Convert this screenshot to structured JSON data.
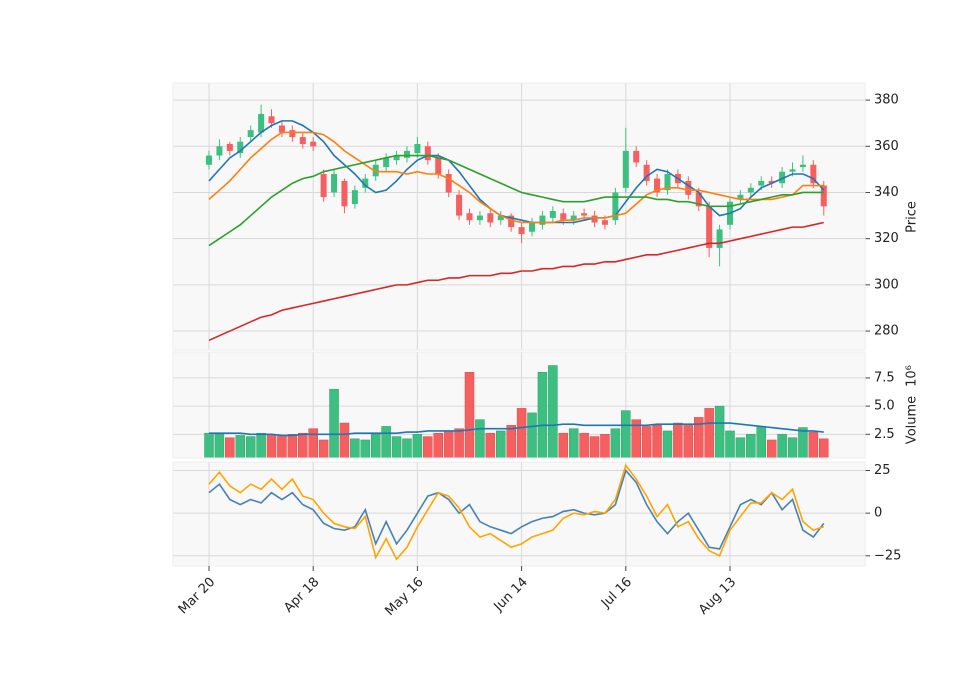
{
  "chart_data": [
    {
      "type": "candlestick",
      "ylabel": "Price",
      "categories": [
        "Mar 20",
        null,
        null,
        null,
        null,
        null,
        null,
        null,
        null,
        null,
        "Apr 18",
        null,
        null,
        null,
        null,
        null,
        null,
        null,
        null,
        null,
        "May 16",
        null,
        null,
        null,
        null,
        null,
        null,
        null,
        null,
        null,
        "Jun 14",
        null,
        null,
        null,
        null,
        null,
        null,
        null,
        null,
        null,
        "Jul 16",
        null,
        null,
        null,
        null,
        null,
        null,
        null,
        null,
        null,
        "Aug 13",
        null,
        null,
        null,
        null,
        null,
        null,
        null,
        null,
        null
      ],
      "open": [
        352,
        356,
        361,
        357,
        364,
        366,
        373,
        369,
        367,
        364,
        362,
        348,
        340,
        345,
        335,
        342,
        347,
        351,
        354,
        355,
        357,
        360,
        355,
        348,
        339,
        331,
        328,
        331,
        328,
        330,
        325,
        323,
        326,
        329,
        331,
        328,
        331,
        330,
        328,
        328,
        342,
        358,
        352,
        346,
        341,
        348,
        345,
        340,
        334,
        316,
        326,
        337,
        340,
        343,
        345,
        344,
        349,
        351,
        352,
        343
      ],
      "high": [
        358,
        363,
        362,
        364,
        369,
        378,
        376,
        371,
        369,
        366,
        364,
        350,
        350,
        346,
        343,
        348,
        354,
        357,
        358,
        360,
        364,
        362,
        357,
        350,
        341,
        333,
        332,
        333,
        332,
        331,
        327,
        329,
        332,
        334,
        333,
        332,
        333,
        332,
        330,
        342,
        368,
        360,
        354,
        348,
        350,
        350,
        347,
        342,
        336,
        326,
        338,
        341,
        344,
        347,
        347,
        351,
        353,
        356,
        354,
        345
      ],
      "low": [
        350,
        354,
        356,
        355,
        362,
        364,
        368,
        364,
        362,
        359,
        358,
        336,
        338,
        331,
        333,
        340,
        345,
        349,
        352,
        353,
        355,
        352,
        346,
        338,
        328,
        326,
        326,
        325,
        326,
        323,
        318,
        321,
        324,
        327,
        326,
        326,
        328,
        325,
        324,
        326,
        340,
        351,
        343,
        338,
        339,
        342,
        337,
        332,
        312,
        308,
        324,
        335,
        338,
        341,
        342,
        342,
        347,
        349,
        342,
        330
      ],
      "close": [
        356,
        360,
        358,
        362,
        367,
        374,
        370,
        366,
        364,
        361,
        360,
        338,
        348,
        334,
        341,
        346,
        352,
        355,
        356,
        358,
        361,
        354,
        348,
        340,
        330,
        328,
        330,
        327,
        330,
        325,
        322,
        327,
        330,
        332,
        328,
        330,
        330,
        327,
        326,
        340,
        358,
        353,
        345,
        340,
        348,
        344,
        339,
        334,
        316,
        324,
        336,
        339,
        342,
        345,
        344,
        349,
        350,
        352,
        344,
        334
      ],
      "up_color": "#3ebf82",
      "down_color": "#f55f5f",
      "series": [
        {
          "color": "#1f77b4",
          "values": [
            345,
            350,
            355,
            358,
            362,
            366,
            369,
            371,
            371,
            369,
            366,
            362,
            356,
            352,
            348,
            343,
            340,
            341,
            345,
            350,
            354,
            356,
            356,
            354,
            349,
            343,
            337,
            333,
            330,
            329,
            328,
            327,
            327,
            327,
            327,
            327,
            328,
            329,
            329,
            330,
            336,
            342,
            347,
            350,
            349,
            346,
            343,
            340,
            334,
            330,
            331,
            333,
            338,
            342,
            344,
            346,
            348,
            348,
            346,
            341
          ]
        },
        {
          "color": "#ff7f0e",
          "values": [
            337,
            341,
            345,
            350,
            355,
            359,
            363,
            366,
            366,
            366,
            366,
            365,
            362,
            358,
            355,
            352,
            349,
            349,
            349,
            348,
            349,
            348,
            348,
            346,
            343,
            340,
            336,
            333,
            330,
            328,
            327,
            327,
            327,
            327,
            328,
            328,
            329,
            329,
            329,
            330,
            331,
            335,
            339,
            341,
            342,
            342,
            341,
            341,
            340,
            339,
            338,
            337,
            337,
            337,
            337,
            338,
            339,
            343,
            343,
            343
          ]
        },
        {
          "color": "#2ca02c",
          "values": [
            317,
            320,
            323,
            326,
            330,
            334,
            338,
            341,
            344,
            346,
            347,
            349,
            350,
            351,
            352,
            353,
            354,
            355,
            356,
            356,
            356,
            356,
            355,
            354,
            352,
            350,
            348,
            346,
            344,
            342,
            340,
            339,
            338,
            337,
            336,
            336,
            336,
            337,
            338,
            338,
            338,
            338,
            338,
            337,
            337,
            336,
            336,
            335,
            334,
            334,
            334,
            335,
            336,
            337,
            338,
            339,
            339,
            340,
            340,
            340
          ]
        },
        {
          "color": "#d62728",
          "values": [
            276,
            278,
            280,
            282,
            284,
            286,
            287,
            289,
            290,
            291,
            292,
            293,
            294,
            295,
            296,
            297,
            298,
            299,
            300,
            300,
            301,
            302,
            302,
            303,
            303,
            304,
            304,
            304,
            305,
            305,
            306,
            306,
            307,
            307,
            308,
            308,
            309,
            309,
            310,
            310,
            311,
            312,
            313,
            313,
            314,
            315,
            316,
            317,
            318,
            318,
            319,
            320,
            321,
            322,
            323,
            324,
            325,
            325,
            326,
            327
          ]
        }
      ],
      "ylim": [
        271.8,
        387.4
      ],
      "yticks": [
        280,
        300,
        320,
        340,
        360,
        380
      ],
      "grid": true
    },
    {
      "type": "bar",
      "ylabel": "Volume",
      "ylabel_unit": "10⁶",
      "values": [
        2.6,
        2.5,
        2.2,
        2.4,
        2.3,
        2.6,
        2.5,
        2.4,
        2.5,
        2.6,
        3.0,
        2.0,
        6.5,
        3.5,
        2.1,
        2.0,
        2.5,
        3.2,
        2.3,
        2.1,
        2.5,
        2.3,
        2.6,
        2.8,
        3.0,
        8.0,
        3.8,
        2.6,
        2.8,
        3.3,
        4.8,
        4.4,
        8.0,
        8.6,
        2.6,
        3.0,
        2.6,
        2.3,
        2.5,
        3.0,
        4.6,
        3.8,
        3.2,
        3.3,
        2.8,
        3.5,
        3.4,
        4.0,
        4.8,
        5.0,
        2.8,
        2.2,
        2.5,
        3.2,
        2.0,
        2.5,
        2.2,
        3.1,
        2.7,
        2.1
      ],
      "series": [
        {
          "color": "#1f77b4",
          "values": [
            2.6,
            2.6,
            2.6,
            2.6,
            2.5,
            2.5,
            2.5,
            2.4,
            2.4,
            2.5,
            2.5,
            2.5,
            2.5,
            2.5,
            2.6,
            2.6,
            2.6,
            2.6,
            2.6,
            2.7,
            2.7,
            2.8,
            2.8,
            2.8,
            2.8,
            2.9,
            3.0,
            3.0,
            3.0,
            3.0,
            3.1,
            3.2,
            3.3,
            3.3,
            3.4,
            3.4,
            3.3,
            3.3,
            3.3,
            3.3,
            3.3,
            3.3,
            3.3,
            3.4,
            3.4,
            3.4,
            3.4,
            3.4,
            3.5,
            3.5,
            3.5,
            3.4,
            3.3,
            3.2,
            3.1,
            3.0,
            2.9,
            2.8,
            2.8,
            2.7
          ]
        }
      ],
      "ylim": [
        0.4,
        9.8
      ],
      "yticks": [
        2.5,
        {
          "value": 5,
          "label": "5.0"
        },
        7.5
      ],
      "grid": true
    },
    {
      "type": "line",
      "series": [
        {
          "color": "#4682b4",
          "values": [
            12,
            17,
            8,
            5,
            8,
            6,
            12,
            8,
            12,
            5,
            2,
            -6,
            -9,
            -10,
            -8,
            2,
            -18,
            -5,
            -18,
            -10,
            0,
            10,
            12,
            8,
            0,
            5,
            -5,
            -8,
            -10,
            -12,
            -8,
            -5,
            -3,
            -2,
            1,
            2,
            0,
            -1,
            0,
            5,
            25,
            18,
            5,
            -5,
            -12,
            -5,
            0,
            -10,
            -20,
            -21,
            -8,
            5,
            8,
            5,
            12,
            2,
            8,
            -10,
            -14,
            -6
          ]
        },
        {
          "color": "#ffa500",
          "values": [
            17,
            24,
            16,
            12,
            17,
            14,
            20,
            14,
            20,
            10,
            8,
            0,
            -6,
            -8,
            -9,
            -2,
            -26,
            -15,
            -27,
            -20,
            -8,
            2,
            12,
            10,
            3,
            -8,
            -14,
            -12,
            -16,
            -20,
            -18,
            -14,
            -12,
            -10,
            -3,
            0,
            -1,
            1,
            0,
            8,
            28,
            20,
            10,
            -2,
            5,
            -8,
            -5,
            -15,
            -22,
            -25,
            -10,
            -2,
            6,
            6,
            12,
            8,
            14,
            -5,
            -10,
            -8
          ]
        }
      ],
      "ylim": [
        -31,
        30
      ],
      "yticks": [
        {
          "value": -25,
          "label": "−25"
        },
        0,
        25
      ],
      "grid": true
    }
  ]
}
